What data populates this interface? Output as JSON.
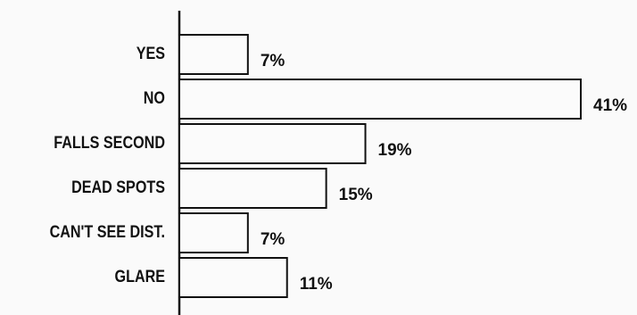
{
  "chart_data": {
    "type": "bar",
    "orientation": "horizontal",
    "categories": [
      "YES",
      "NO",
      "FALLS SECOND",
      "DEAD SPOTS",
      "CAN'T SEE DIST.",
      "GLARE"
    ],
    "values": [
      7,
      41,
      19,
      15,
      7,
      11
    ],
    "value_labels": [
      "7%",
      "41%",
      "19%",
      "15%",
      "7%",
      "11%"
    ],
    "unit": "%",
    "xlim": [
      0,
      41
    ],
    "grid": false,
    "legend": "none",
    "colors": {
      "bar_fill": "#fbfbfb",
      "bar_stroke": "#111111",
      "background": "#fafafa"
    }
  }
}
